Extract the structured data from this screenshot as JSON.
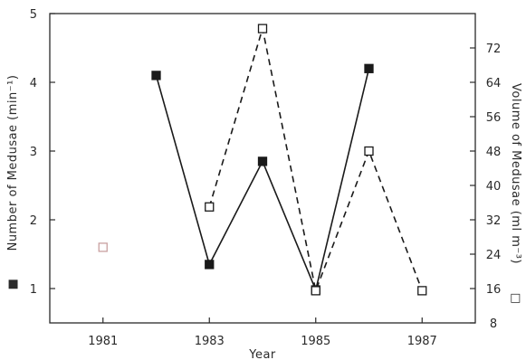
{
  "chart_data": {
    "type": "line",
    "xlabel": "Year",
    "ylabel_left": "Number of Medusae (min⁻¹)",
    "ylabel_right": "Volume of Medusae (ml m⁻³)",
    "left_marker_glyph": "■",
    "right_marker_glyph": "□",
    "xlim": [
      1980,
      1988
    ],
    "ylim_left": [
      0.5,
      5
    ],
    "ylim_right": [
      8,
      80
    ],
    "x_ticks": [
      1981,
      1983,
      1985,
      1987
    ],
    "x_tick_labels": [
      "1981",
      "1983",
      "1985",
      "1987"
    ],
    "y_left_ticks": [
      1,
      2,
      3,
      4,
      5
    ],
    "y_left_tick_labels": [
      "1",
      "2",
      "3",
      "4",
      "5"
    ],
    "y_right_ticks": [
      8,
      16,
      24,
      32,
      40,
      48,
      56,
      64,
      72
    ],
    "y_right_tick_labels": [
      "8",
      "16",
      "24",
      "32",
      "40",
      "48",
      "56",
      "64",
      "72"
    ],
    "series": [
      {
        "name": "Number of Medusae",
        "axis": "left",
        "style": "solid",
        "marker": "filled-square",
        "color": "#1a1a1a",
        "x": [
          1982,
          1983,
          1984,
          1985,
          1986
        ],
        "y": [
          4.1,
          1.35,
          2.85,
          0.98,
          4.2
        ]
      },
      {
        "name": "Volume of Medusae",
        "axis": "right",
        "style": "dashed",
        "marker": "open-square",
        "color": "#1a1a1a",
        "x": [
          1983,
          1984,
          1985,
          1986,
          1987
        ],
        "y": [
          35,
          76.5,
          15.5,
          48,
          15.5
        ]
      }
    ],
    "extra_points": [
      {
        "x": 1981,
        "y_left": 1.6,
        "marker": "open-square",
        "color": "#c9a0a0"
      }
    ]
  }
}
